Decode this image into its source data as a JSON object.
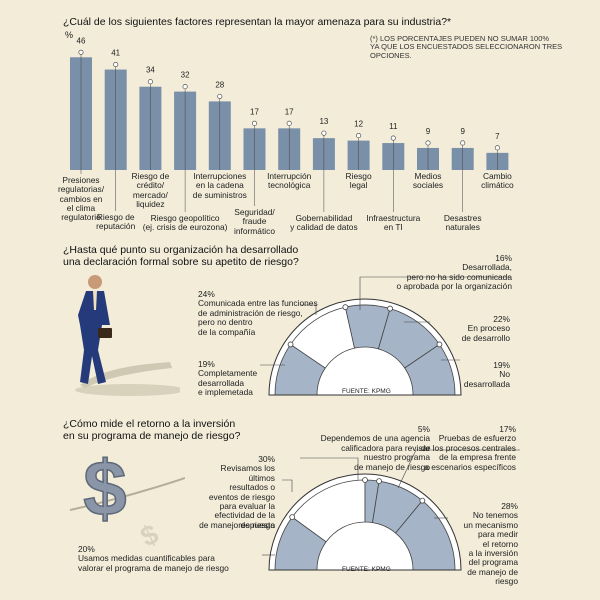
{
  "q1": {
    "title": "¿Cuál de los siguientes factores representan la mayor amenaza para su industria?*",
    "unit": "%",
    "note_line1": "(*) LOS PORCENTAJES PUEDEN NO SUMAR 100%",
    "note_line2": "YA QUE LOS ENCUESTADOS SELECCIONARON TRES OPCIONES."
  },
  "q2": {
    "title_line1": "¿Hasta qué punto su organización ha desarrollado",
    "title_line2": "una declaración formal sobre su apetito de riesgo?",
    "source": "FUENTE: KPMG"
  },
  "q3": {
    "title_line1": "¿Cómo mide el retorno a la inversión",
    "title_line2": "en su programa de manejo de riesgo?",
    "source": "FUENTE: KPMG"
  },
  "colors": {
    "bar": "#7a8fa8",
    "bar_light": "#a8b8c9",
    "gauge": "#a5b4c6",
    "white": "#ffffff",
    "bg": "#f2ecd9"
  },
  "chart_data": [
    {
      "type": "bar",
      "title": "¿Cuál de los siguientes factores representan la mayor amenaza para su industria?*",
      "ylabel": "%",
      "ylim": [
        0,
        50
      ],
      "values": [
        46,
        41,
        34,
        32,
        28,
        17,
        17,
        13,
        12,
        11,
        9,
        9,
        7
      ],
      "categories": [
        "Presiones regulatorias/ cambios en el clima regulatorio",
        "Riesgo de reputación",
        "Riesgo de crédito/ mercado/ liquidez",
        "Riesgo geopolítico (ej. crisis de eurozona)",
        "Interrupciones en la cadena de suministros",
        "Seguridad/ fraude informático",
        "Interrupción tecnológica",
        "Gobernabilidad y calidad de datos",
        "Riesgo legal",
        "Infraestructura en TI",
        "Medios sociales",
        "Desastres naturales",
        "Cambio climático"
      ],
      "labels_lines": [
        [
          "Presiones",
          "regulatorias/",
          "cambios en",
          "el clima",
          "regulatorio"
        ],
        [
          "Riesgo de",
          "reputación"
        ],
        [
          "Riesgo de",
          "crédito/",
          "mercado/",
          "liquidez"
        ],
        [
          "Riesgo geopolítico",
          "(ej. crisis de eurozona)"
        ],
        [
          "Interrupciones",
          "en la cadena",
          "de suministros"
        ],
        [
          "Seguridad/",
          "fraude",
          "informático"
        ],
        [
          "Interrupción",
          "tecnológica"
        ],
        [
          "Gobernabilidad",
          "y calidad de datos"
        ],
        [
          "Riesgo",
          "legal"
        ],
        [
          "Infraestructura",
          "en TI"
        ],
        [
          "Medios",
          "sociales"
        ],
        [
          "Desastres",
          "naturales"
        ],
        [
          "Cambio",
          "climático"
        ]
      ]
    },
    {
      "type": "pie",
      "title": "¿Hasta qué punto su organización ha desarrollado una declaración formal sobre su apetito de riesgo?",
      "slices": [
        {
          "name": "Completamente desarrollada e implemetada",
          "value": 19,
          "pct": "19%",
          "lines": [
            "Completamente",
            "desarrollada",
            "e implemetada"
          ]
        },
        {
          "name": "Comunicada entre las funciones de administración de riesgo, pero no dentro de la compañía",
          "value": 24,
          "pct": "24%",
          "lines": [
            "Comunicada entre las funciones",
            "de administración de riesgo,",
            "pero no dentro",
            "de la compañía"
          ]
        },
        {
          "name": "Desarrollada, pero no ha sido comunicada o aprobada por la organización",
          "value": 16,
          "pct": "16%",
          "lines": [
            "Desarrollada,",
            "pero no ha sido comunicada",
            "o aprobada por la organización"
          ]
        },
        {
          "name": "En proceso de desarrollo",
          "value": 22,
          "pct": "22%",
          "lines": [
            "En proceso",
            "de desarrollo"
          ]
        },
        {
          "name": "No desarrollada",
          "value": 19,
          "pct": "19%",
          "lines": [
            "No",
            "desarrollada"
          ]
        }
      ],
      "source": "FUENTE: KPMG"
    },
    {
      "type": "pie",
      "title": "¿Cómo mide el retorno a la inversión en su programa de manejo de riesgo?",
      "slices": [
        {
          "name": "Usamos medidas cuantificables para valorar el programa de manejo de riesgo",
          "value": 20,
          "pct": "20%",
          "lines": [
            "Usamos medidas cuantificables para",
            "valorar el programa de manejo de riesgo"
          ]
        },
        {
          "name": "Revisamos los últimos resultados o eventos de riesgo para evaluar la efectividad de la respuesta de manejo de riesgo",
          "value": 30,
          "pct": "30%",
          "lines": [
            "Revisamos los",
            "últimos",
            "resultados o",
            "eventos de riesgo",
            "para evaluar la",
            "efectividad de la respuesta",
            "de manejo de riesgo"
          ]
        },
        {
          "name": "Dependemos de una agencia calificadora para revisar nuestro programa de manejo de riesgo",
          "value": 5,
          "pct": "5%",
          "lines": [
            "Dependemos de una agencia",
            "calificadora para revisar",
            "nuestro programa",
            "de manejo de riesgo"
          ]
        },
        {
          "name": "Pruebas de esfuerzo de los procesos centrales de la empresa frente a escenarios específicos",
          "value": 17,
          "pct": "17%",
          "lines": [
            "Pruebas de esfuerzo",
            "de los procesos centrales",
            "de la empresa frente",
            "a escenarios específicos"
          ]
        },
        {
          "name": "No tenemos un mecanismo para medir el retorno a la inversión del programa de manejo de riesgo",
          "value": 28,
          "pct": "28%",
          "lines": [
            "No tenemos",
            "un mecanismo",
            "para medir",
            "el retorno",
            "a la inversión",
            "del programa",
            "de manejo de riesgo"
          ]
        }
      ],
      "source": "FUENTE: KPMG"
    }
  ]
}
